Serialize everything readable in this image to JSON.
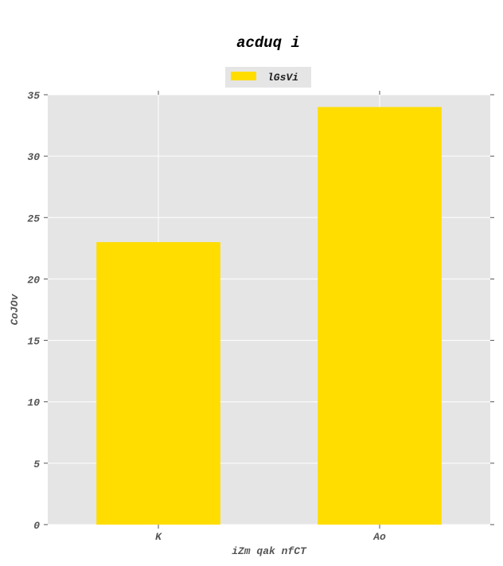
{
  "chart_data": {
    "type": "bar",
    "title": "acduq i",
    "xlabel": "iZm qak nfCT",
    "ylabel": "CoJOv",
    "categories": [
      "K",
      "Ao"
    ],
    "series": [
      {
        "name": "lGsVi",
        "values": [
          23,
          34
        ],
        "color": "#ffdd00"
      }
    ],
    "ylim": [
      0,
      35
    ],
    "yticks": [
      0,
      5,
      10,
      15,
      20,
      25,
      30,
      35
    ],
    "grid": true,
    "legend_position": "top-center",
    "plot_background": "#e5e5e5",
    "grid_color": "#ffffff"
  }
}
